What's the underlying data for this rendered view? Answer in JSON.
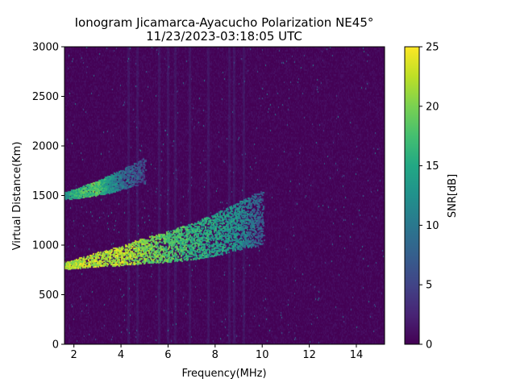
{
  "chart_data": {
    "type": "heatmap",
    "title": "Ionogram Jicamarca-Ayacucho Polarization NE45°",
    "subtitle": "11/23/2023-03:18:05 UTC",
    "xlabel": "Frequency(MHz)",
    "ylabel": "Virtual Distance(Km)",
    "xlim": [
      1.6,
      15.2
    ],
    "ylim": [
      0,
      3000
    ],
    "x_ticks": [
      2,
      4,
      6,
      8,
      10,
      12,
      14
    ],
    "x_tick_labels": [
      "2",
      "4",
      "6",
      "8",
      "10",
      "12",
      "14"
    ],
    "y_ticks": [
      0,
      500,
      1000,
      1500,
      2000,
      2500,
      3000
    ],
    "y_tick_labels": [
      "0",
      "500",
      "1000",
      "1500",
      "2000",
      "2500",
      "3000"
    ],
    "colorbar": {
      "label": "SNR[dB]",
      "range": [
        0,
        25
      ],
      "ticks": [
        0,
        5,
        10,
        15,
        20,
        25
      ],
      "tick_labels": [
        "0",
        "5",
        "10",
        "15",
        "20",
        "25"
      ],
      "colormap": "viridis"
    },
    "traces": [
      {
        "frequency_mhz": [
          1.6,
          2.0,
          3.0,
          4.0,
          5.0,
          6.0,
          7.0,
          8.0,
          9.0,
          10.0
        ],
        "virtual_distance_km": [
          800,
          810,
          860,
          900,
          950,
          990,
          1040,
          1110,
          1200,
          1280
        ],
        "snr_db": [
          24,
          25,
          25,
          25,
          23,
          21,
          19,
          17,
          15,
          10
        ]
      },
      {
        "frequency_mhz": [
          1.6,
          2.0,
          2.5,
          3.0,
          3.5,
          4.0,
          5.0
        ],
        "virtual_distance_km": [
          1500,
          1520,
          1550,
          1580,
          1620,
          1660,
          1760
        ],
        "snr_db": [
          16,
          18,
          20,
          21,
          16,
          12,
          8
        ]
      }
    ],
    "interference_bands_mhz": [
      4.3,
      4.7,
      5.6,
      6.0,
      6.3,
      6.9,
      7.7,
      8.6,
      8.8,
      9.2
    ]
  }
}
